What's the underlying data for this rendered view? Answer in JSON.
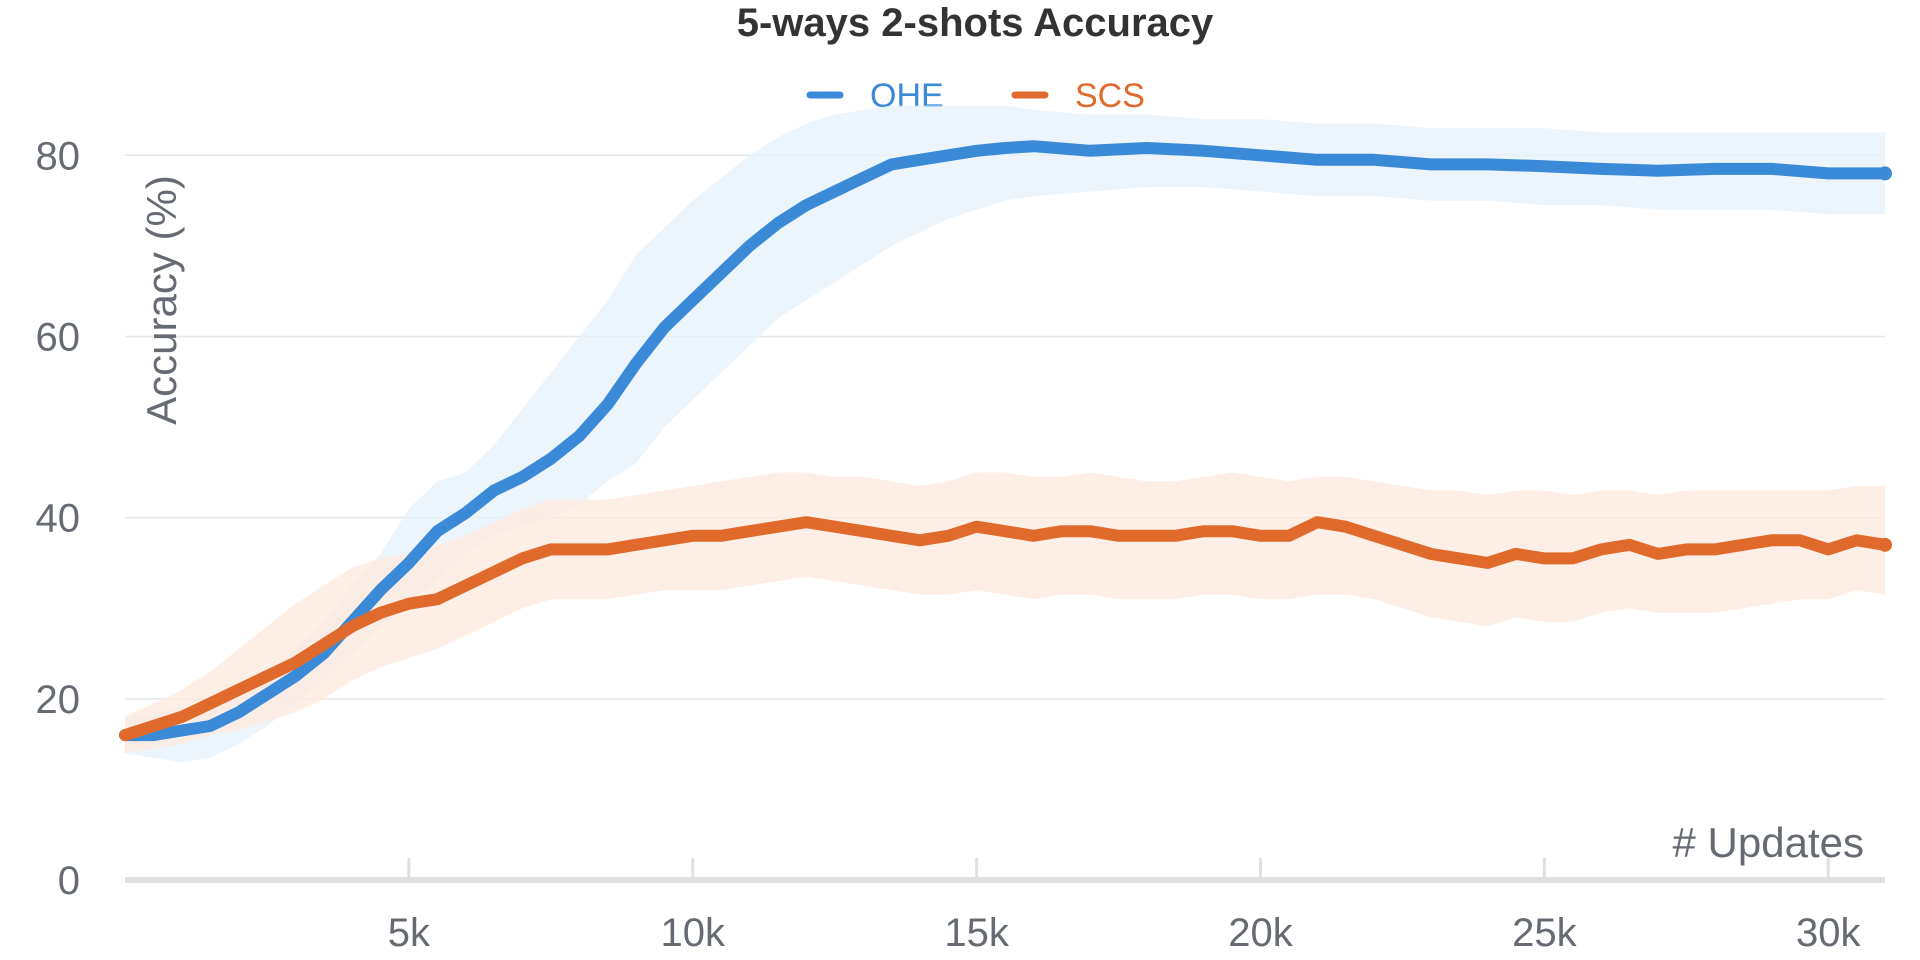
{
  "chart_data": {
    "type": "line",
    "title": "5-ways 2-shots Accuracy",
    "xlabel": "# Updates",
    "ylabel": "Accuracy (%)",
    "xlim": [
      0,
      31000
    ],
    "ylim": [
      0,
      85
    ],
    "y_ticks": [
      0,
      20,
      40,
      60,
      80
    ],
    "y_tick_labels": [
      "0",
      "20",
      "40",
      "60",
      "80"
    ],
    "x_ticks": [
      5000,
      10000,
      15000,
      20000,
      25000,
      30000
    ],
    "x_tick_labels": [
      "5k",
      "10k",
      "15k",
      "20k",
      "25k",
      "30k"
    ],
    "grid": true,
    "legend_position": "top-center",
    "series": [
      {
        "name": "OHE",
        "color": "#3a8ad8",
        "band_color": "#e6f0fb",
        "x": [
          0,
          500,
          1000,
          1500,
          2000,
          2500,
          3000,
          3500,
          4000,
          4500,
          5000,
          5500,
          6000,
          6500,
          7000,
          7500,
          8000,
          8500,
          9000,
          9500,
          10000,
          10500,
          11000,
          11500,
          12000,
          12500,
          13000,
          13500,
          14000,
          14500,
          15000,
          15500,
          16000,
          17000,
          18000,
          19000,
          20000,
          21000,
          22000,
          23000,
          24000,
          25000,
          26000,
          27000,
          28000,
          29000,
          30000,
          31000
        ],
        "y": [
          16,
          16,
          16.5,
          17,
          18.5,
          20.5,
          22.5,
          25,
          28.5,
          32,
          35,
          38.5,
          40.5,
          43,
          44.5,
          46.5,
          49,
          52.5,
          57,
          61,
          64,
          67,
          70,
          72.5,
          74.5,
          76,
          77.5,
          79,
          79.5,
          80,
          80.5,
          80.8,
          81,
          80.5,
          80.8,
          80.5,
          80,
          79.5,
          79.5,
          79,
          79,
          78.8,
          78.5,
          78.3,
          78.5,
          78.5,
          78,
          78
        ],
        "upper": [
          18,
          18.5,
          19,
          19.5,
          21,
          23,
          25.5,
          28.5,
          32.5,
          36,
          41,
          44,
          45,
          48,
          52,
          56,
          60,
          64,
          69,
          72,
          75,
          77.5,
          80,
          82,
          83.5,
          84.5,
          85,
          85.5,
          85.5,
          85.5,
          85.5,
          85.5,
          85,
          84.5,
          84.5,
          84,
          84,
          83.5,
          83.5,
          83,
          83,
          83,
          82.5,
          82.5,
          82.5,
          82.5,
          82.5,
          82.5
        ],
        "lower": [
          14,
          13.5,
          13,
          13.5,
          15,
          17,
          19.5,
          22,
          25,
          28,
          30.5,
          33,
          36,
          38,
          39,
          40,
          41.5,
          44,
          46,
          50,
          53,
          56,
          59,
          62,
          64,
          66,
          68,
          70,
          71.5,
          73,
          74,
          75,
          75.5,
          76,
          76.5,
          76.5,
          76,
          75.5,
          75.5,
          75,
          75,
          74.5,
          74.5,
          74,
          74,
          74,
          73.5,
          73.5
        ]
      },
      {
        "name": "SCS",
        "color": "#e06a2c",
        "band_color": "#fde9de",
        "x": [
          0,
          500,
          1000,
          1500,
          2000,
          2500,
          3000,
          3500,
          4000,
          4500,
          5000,
          5500,
          6000,
          6500,
          7000,
          7500,
          8000,
          8500,
          9000,
          9500,
          10000,
          10500,
          11000,
          11500,
          12000,
          12500,
          13000,
          13500,
          14000,
          14500,
          15000,
          15500,
          16000,
          16500,
          17000,
          17500,
          18000,
          18500,
          19000,
          19500,
          20000,
          20500,
          21000,
          21500,
          22000,
          22500,
          23000,
          23500,
          24000,
          24500,
          25000,
          25500,
          26000,
          26500,
          27000,
          27500,
          28000,
          28500,
          29000,
          29500,
          30000,
          30500,
          31000
        ],
        "y": [
          16,
          17,
          18,
          19.5,
          21,
          22.5,
          24,
          26,
          28,
          29.5,
          30.5,
          31,
          32.5,
          34,
          35.5,
          36.5,
          36.5,
          36.5,
          37,
          37.5,
          38,
          38,
          38.5,
          39,
          39.5,
          39,
          38.5,
          38,
          37.5,
          38,
          39,
          38.5,
          38,
          38.5,
          38.5,
          38,
          38,
          38,
          38.5,
          38.5,
          38,
          38,
          39.5,
          39,
          38,
          37,
          36,
          35.5,
          35,
          36,
          35.5,
          35.5,
          36.5,
          37,
          36,
          36.5,
          36.5,
          37,
          37.5,
          37.5,
          36.5,
          37.5,
          37
        ],
        "upper": [
          18,
          19.5,
          21,
          23,
          25.5,
          28,
          30.5,
          32.5,
          34.5,
          35.5,
          36,
          37,
          38,
          39.5,
          41,
          42,
          42,
          42,
          42.5,
          43,
          43.5,
          44,
          44.5,
          45,
          45,
          44.5,
          44.5,
          44,
          43.5,
          44,
          45,
          45,
          44.5,
          44.5,
          45,
          44.5,
          44,
          44,
          44.5,
          45,
          44.5,
          44,
          44.5,
          44.5,
          44,
          43.5,
          43,
          43,
          42.5,
          43,
          43,
          42.5,
          43,
          43,
          42.5,
          43,
          43,
          43,
          43,
          43,
          43,
          43.5,
          43.5
        ],
        "lower": [
          14,
          14.5,
          15,
          16,
          16.5,
          17.5,
          18.5,
          20,
          22,
          23.5,
          24.5,
          25.5,
          27,
          28.5,
          30,
          31,
          31,
          31,
          31.5,
          32,
          32,
          32,
          32.5,
          33,
          33.5,
          33,
          32.5,
          32,
          31.5,
          31.5,
          32,
          31.5,
          31,
          31.5,
          31.5,
          31,
          31,
          31,
          31.5,
          31.5,
          31,
          31,
          31.5,
          31.5,
          31,
          30,
          29,
          28.5,
          28,
          29,
          28.5,
          28.5,
          29.5,
          30,
          29.5,
          29.5,
          29.5,
          30,
          30.5,
          31,
          31,
          32,
          31.5
        ]
      }
    ]
  }
}
